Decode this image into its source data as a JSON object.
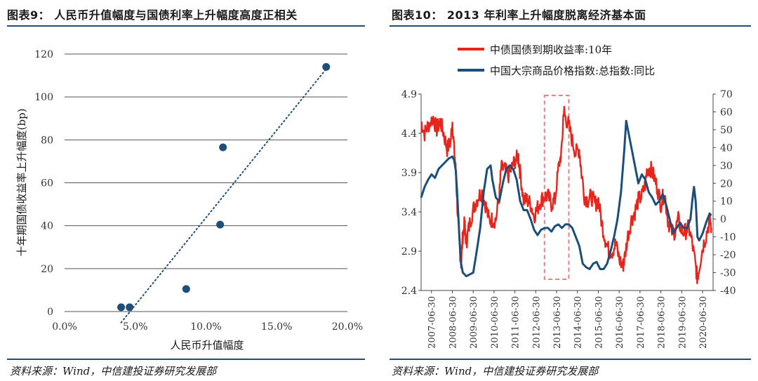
{
  "titles": {
    "left": "图表9：  人民币升值幅度与国债利率上升幅度高度正相关",
    "right": "图表10：  2013 年利率上升幅度脱离经济基本面"
  },
  "sources": {
    "left": "资料来源：Wind，中信建投证券研究发展部",
    "right": "资料来源：Wind，中信建投证券研究发展部"
  },
  "colors": {
    "accent": "#1f4e79",
    "scatter": "#1f4e79",
    "red": "#e8251c",
    "navy": "#1b4f7a",
    "box": "#f08080"
  },
  "chart_data": [
    {
      "type": "scatter",
      "xlabel": "人民币升值幅度",
      "ylabel": "十年期国债收益率上升幅度(bp)",
      "xlim": [
        0,
        0.2
      ],
      "ylim": [
        0,
        120
      ],
      "x_ticks": [
        "0.0%",
        "5.0%",
        "10.0%",
        "15.0%",
        "20.0%"
      ],
      "y_ticks": [
        "0",
        "20",
        "40",
        "60",
        "80",
        "100",
        "120"
      ],
      "trendline": "linear dotted",
      "grid": "horizontal",
      "points": [
        {
          "x": 0.04,
          "y": 2
        },
        {
          "x": 0.046,
          "y": 2
        },
        {
          "x": 0.086,
          "y": 10.5
        },
        {
          "x": 0.11,
          "y": 40.5
        },
        {
          "x": 0.112,
          "y": 76.5
        },
        {
          "x": 0.185,
          "y": 114
        }
      ]
    },
    {
      "type": "line",
      "x_tick_labels": [
        "2007-06-30",
        "2008-06-30",
        "2009-06-30",
        "2010-06-30",
        "2011-06-30",
        "2012-06-30",
        "2013-06-30",
        "2014-06-30",
        "2015-06-30",
        "2016-06-30",
        "2017-06-30",
        "2018-06-30",
        "2019-06-30",
        "2020-06-30"
      ],
      "x_range": [
        "2007-01",
        "2020-12"
      ],
      "ylim_left": [
        2.4,
        4.9
      ],
      "ylim_right": [
        -40,
        70
      ],
      "y_ticks_left": [
        "4.9",
        "4.4",
        "3.9",
        "3.4",
        "2.9",
        "2.4"
      ],
      "y_ticks_right": [
        "70",
        "60",
        "50",
        "40",
        "30",
        "20",
        "10",
        "0",
        "-10",
        "-20",
        "-30",
        "-40"
      ],
      "legend_position": "top",
      "highlight_box": {
        "x_start": "2012-12",
        "x_end": "2014-02"
      },
      "series": [
        {
          "name": "中债国债到期收益率:10年",
          "axis": "left",
          "points": [
            [
              "2007-01",
              4.55
            ],
            [
              "2007-03",
              4.4
            ],
            [
              "2007-05",
              4.5
            ],
            [
              "2007-08",
              4.6
            ],
            [
              "2007-10",
              4.45
            ],
            [
              "2007-12",
              4.55
            ],
            [
              "2008-02",
              4.4
            ],
            [
              "2008-04",
              4.2
            ],
            [
              "2008-06",
              4.3
            ],
            [
              "2008-07",
              4.55
            ],
            [
              "2008-08",
              4.2
            ],
            [
              "2008-09",
              3.9
            ],
            [
              "2008-10",
              3.4
            ],
            [
              "2008-11",
              3.0
            ],
            [
              "2008-12",
              2.75
            ],
            [
              "2009-01",
              3.1
            ],
            [
              "2009-02",
              3.25
            ],
            [
              "2009-03",
              3.0
            ],
            [
              "2009-04",
              3.15
            ],
            [
              "2009-06",
              3.35
            ],
            [
              "2009-08",
              3.5
            ],
            [
              "2009-10",
              3.6
            ],
            [
              "2009-12",
              3.65
            ],
            [
              "2010-02",
              3.5
            ],
            [
              "2010-04",
              3.3
            ],
            [
              "2010-06",
              3.3
            ],
            [
              "2010-08",
              3.3
            ],
            [
              "2010-10",
              3.6
            ],
            [
              "2010-11",
              3.95
            ],
            [
              "2011-01",
              3.95
            ],
            [
              "2011-03",
              3.85
            ],
            [
              "2011-05",
              3.95
            ],
            [
              "2011-07",
              4.05
            ],
            [
              "2011-09",
              4.1
            ],
            [
              "2011-10",
              3.9
            ],
            [
              "2011-12",
              3.55
            ],
            [
              "2012-02",
              3.55
            ],
            [
              "2012-04",
              3.5
            ],
            [
              "2012-06",
              3.35
            ],
            [
              "2012-08",
              3.45
            ],
            [
              "2012-10",
              3.55
            ],
            [
              "2012-12",
              3.6
            ],
            [
              "2013-02",
              3.6
            ],
            [
              "2013-04",
              3.5
            ],
            [
              "2013-06",
              3.55
            ],
            [
              "2013-08",
              3.95
            ],
            [
              "2013-10",
              4.2
            ],
            [
              "2013-11",
              4.7
            ],
            [
              "2013-12",
              4.6
            ],
            [
              "2014-02",
              4.5
            ],
            [
              "2014-04",
              4.3
            ],
            [
              "2014-06",
              4.15
            ],
            [
              "2014-08",
              4.2
            ],
            [
              "2014-09",
              3.95
            ],
            [
              "2014-11",
              3.6
            ],
            [
              "2015-01",
              3.55
            ],
            [
              "2015-03",
              3.6
            ],
            [
              "2015-05",
              3.5
            ],
            [
              "2015-07",
              3.55
            ],
            [
              "2015-09",
              3.25
            ],
            [
              "2015-11",
              3.05
            ],
            [
              "2016-01",
              2.9
            ],
            [
              "2016-03",
              2.9
            ],
            [
              "2016-05",
              3.0
            ],
            [
              "2016-07",
              2.8
            ],
            [
              "2016-09",
              2.7
            ],
            [
              "2016-10",
              2.8
            ],
            [
              "2016-12",
              3.1
            ],
            [
              "2017-02",
              3.3
            ],
            [
              "2017-04",
              3.4
            ],
            [
              "2017-06",
              3.55
            ],
            [
              "2017-08",
              3.6
            ],
            [
              "2017-10",
              3.75
            ],
            [
              "2017-11",
              3.95
            ],
            [
              "2018-01",
              3.95
            ],
            [
              "2018-03",
              3.85
            ],
            [
              "2018-05",
              3.7
            ],
            [
              "2018-07",
              3.5
            ],
            [
              "2018-09",
              3.65
            ],
            [
              "2018-11",
              3.3
            ],
            [
              "2019-01",
              3.15
            ],
            [
              "2019-03",
              3.15
            ],
            [
              "2019-05",
              3.3
            ],
            [
              "2019-07",
              3.15
            ],
            [
              "2019-09",
              3.15
            ],
            [
              "2019-11",
              3.2
            ],
            [
              "2020-01",
              3.0
            ],
            [
              "2020-03",
              2.7
            ],
            [
              "2020-04",
              2.55
            ],
            [
              "2020-05",
              2.7
            ],
            [
              "2020-07",
              2.95
            ],
            [
              "2020-09",
              3.1
            ],
            [
              "2020-11",
              3.3
            ],
            [
              "2020-12",
              3.2
            ]
          ]
        },
        {
          "name": "中国大宗商品价格指数:总指数:同比",
          "axis": "right",
          "points": [
            [
              "2007-01",
              12
            ],
            [
              "2007-03",
              18
            ],
            [
              "2007-05",
              22
            ],
            [
              "2007-07",
              25
            ],
            [
              "2007-09",
              23
            ],
            [
              "2007-11",
              28
            ],
            [
              "2008-01",
              30
            ],
            [
              "2008-03",
              32
            ],
            [
              "2008-05",
              34
            ],
            [
              "2008-07",
              35
            ],
            [
              "2008-08",
              33
            ],
            [
              "2008-09",
              27
            ],
            [
              "2008-10",
              10
            ],
            [
              "2008-11",
              -10
            ],
            [
              "2008-12",
              -25
            ],
            [
              "2009-01",
              -30
            ],
            [
              "2009-03",
              -32
            ],
            [
              "2009-05",
              -31
            ],
            [
              "2009-07",
              -30
            ],
            [
              "2009-09",
              -18
            ],
            [
              "2009-11",
              -5
            ],
            [
              "2010-01",
              15
            ],
            [
              "2010-03",
              28
            ],
            [
              "2010-05",
              30
            ],
            [
              "2010-06",
              22
            ],
            [
              "2010-08",
              12
            ],
            [
              "2010-10",
              10
            ],
            [
              "2010-12",
              20
            ],
            [
              "2011-02",
              28
            ],
            [
              "2011-04",
              30
            ],
            [
              "2011-06",
              28
            ],
            [
              "2011-08",
              22
            ],
            [
              "2011-10",
              10
            ],
            [
              "2011-12",
              5
            ],
            [
              "2012-02",
              5
            ],
            [
              "2012-04",
              0
            ],
            [
              "2012-06",
              -6
            ],
            [
              "2012-08",
              -9
            ],
            [
              "2012-10",
              -6
            ],
            [
              "2012-12",
              -5
            ],
            [
              "2013-02",
              -5
            ],
            [
              "2013-04",
              -7
            ],
            [
              "2013-06",
              -4
            ],
            [
              "2013-08",
              -3
            ],
            [
              "2013-10",
              -5
            ],
            [
              "2013-12",
              -3
            ],
            [
              "2014-02",
              -3
            ],
            [
              "2014-04",
              -5
            ],
            [
              "2014-06",
              -10
            ],
            [
              "2014-08",
              -15
            ],
            [
              "2014-10",
              -25
            ],
            [
              "2014-12",
              -27
            ],
            [
              "2015-02",
              -28
            ],
            [
              "2015-04",
              -25
            ],
            [
              "2015-06",
              -24
            ],
            [
              "2015-08",
              -28
            ],
            [
              "2015-10",
              -28
            ],
            [
              "2015-12",
              -25
            ],
            [
              "2016-02",
              -18
            ],
            [
              "2016-04",
              -10
            ],
            [
              "2016-06",
              0
            ],
            [
              "2016-08",
              15
            ],
            [
              "2016-10",
              40
            ],
            [
              "2016-11",
              55
            ],
            [
              "2016-12",
              50
            ],
            [
              "2017-02",
              40
            ],
            [
              "2017-04",
              30
            ],
            [
              "2017-06",
              20
            ],
            [
              "2017-08",
              25
            ],
            [
              "2017-10",
              22
            ],
            [
              "2017-12",
              15
            ],
            [
              "2018-02",
              12
            ],
            [
              "2018-04",
              8
            ],
            [
              "2018-06",
              10
            ],
            [
              "2018-08",
              14
            ],
            [
              "2018-10",
              8
            ],
            [
              "2018-12",
              0
            ],
            [
              "2019-02",
              -8
            ],
            [
              "2019-04",
              -5
            ],
            [
              "2019-06",
              -2
            ],
            [
              "2019-08",
              -5
            ],
            [
              "2019-10",
              -5
            ],
            [
              "2019-12",
              0
            ],
            [
              "2020-01",
              10
            ],
            [
              "2020-02",
              18
            ],
            [
              "2020-03",
              10
            ],
            [
              "2020-04",
              -10
            ],
            [
              "2020-05",
              -12
            ],
            [
              "2020-07",
              -8
            ],
            [
              "2020-09",
              -2
            ],
            [
              "2020-11",
              3
            ],
            [
              "2020-12",
              2
            ]
          ]
        }
      ]
    }
  ]
}
